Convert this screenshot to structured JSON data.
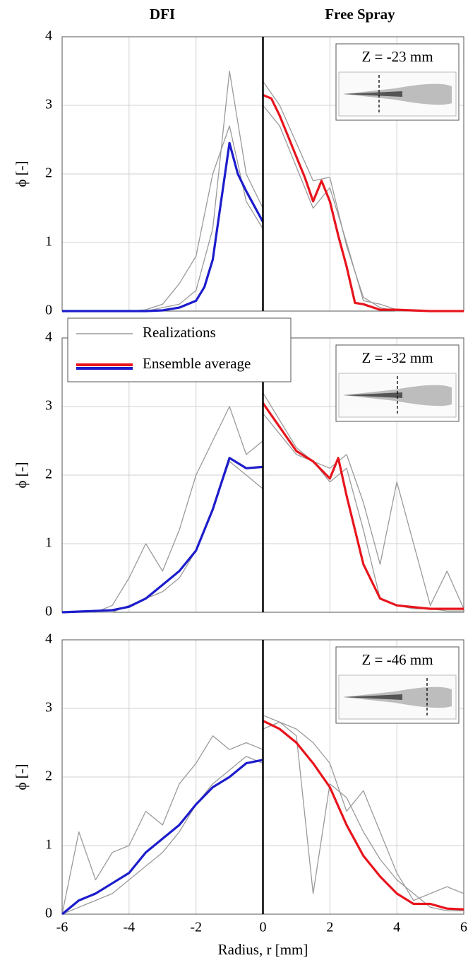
{
  "chart_data": [
    {
      "type": "line",
      "column_titles": [
        "DFI",
        "Free Spray"
      ],
      "ylabel": "ϕ [-]",
      "annotation": "Z = -23 mm",
      "xlim": [
        -6,
        6
      ],
      "ylim": [
        0,
        4
      ],
      "xticks": [
        -6,
        -4,
        -2,
        0,
        2,
        4,
        6
      ],
      "yticks": [
        0,
        1,
        2,
        3,
        4
      ],
      "grid": true,
      "series": [
        {
          "color": "#9a9a9a",
          "x": [
            -6,
            -5.5,
            -5,
            -4.5,
            -4,
            -3.5,
            -3,
            -2.5,
            -2,
            -1.5,
            -1,
            -0.5,
            0
          ],
          "values": [
            0,
            0,
            0,
            0,
            0,
            0,
            0.05,
            0.1,
            0.3,
            1.2,
            3.5,
            2.0,
            1.5
          ]
        },
        {
          "color": "#9a9a9a",
          "x": [
            -6,
            -5.5,
            -5,
            -4.5,
            -4,
            -3.5,
            -3,
            -2.5,
            -2,
            -1.5,
            -1,
            -0.5,
            0
          ],
          "values": [
            0,
            0,
            0,
            0,
            0,
            0.02,
            0.1,
            0.4,
            0.8,
            2.0,
            2.7,
            1.6,
            1.2
          ]
        },
        {
          "color": "#9a9a9a",
          "x": [
            0,
            0.5,
            1,
            1.5,
            2,
            2.5,
            3,
            3.5,
            4,
            4.5,
            5,
            5.5,
            6
          ],
          "values": [
            3.35,
            3.0,
            2.45,
            1.9,
            1.95,
            0.95,
            0.2,
            0.05,
            0,
            0,
            0,
            0,
            0
          ]
        },
        {
          "color": "#9a9a9a",
          "x": [
            0,
            0.5,
            1,
            1.5,
            2,
            2.5,
            3,
            3.5,
            4,
            4.5,
            5,
            5.5,
            6
          ],
          "values": [
            3.0,
            2.7,
            2.1,
            1.5,
            1.8,
            1.0,
            0.15,
            0.1,
            0.02,
            0,
            0,
            0,
            0
          ]
        },
        {
          "color": "#1c1ccc",
          "x": [
            -6,
            -5.5,
            -5,
            -4.5,
            -4,
            -3.5,
            -3,
            -2.5,
            -2,
            -1.75,
            -1.5,
            -1.25,
            -1,
            -0.75,
            -0.5,
            0
          ],
          "values": [
            0,
            0,
            0,
            0,
            0,
            0,
            0.01,
            0.05,
            0.15,
            0.35,
            0.75,
            1.6,
            2.45,
            2.0,
            1.75,
            1.3
          ]
        },
        {
          "color": "#e8141c",
          "x": [
            0,
            0.25,
            0.5,
            0.75,
            1,
            1.25,
            1.5,
            1.75,
            2,
            2.25,
            2.5,
            2.75,
            3,
            3.5,
            4,
            5,
            6
          ],
          "values": [
            3.15,
            3.1,
            2.85,
            2.55,
            2.25,
            1.95,
            1.6,
            1.9,
            1.6,
            1.1,
            0.65,
            0.12,
            0.1,
            0.02,
            0.02,
            0,
            0
          ]
        }
      ]
    },
    {
      "type": "line",
      "ylabel": "ϕ [-]",
      "annotation": "Z = -32 mm",
      "xlim": [
        -6,
        6
      ],
      "ylim": [
        0,
        4
      ],
      "xticks": [
        -6,
        -4,
        -2,
        0,
        2,
        4,
        6
      ],
      "yticks": [
        0,
        1,
        2,
        3,
        4
      ],
      "grid": true,
      "legend": {
        "position": "upper left",
        "entries": [
          {
            "label": "Realizations",
            "colors": [
              "#9a9a9a"
            ]
          },
          {
            "label": "Ensemble average",
            "colors": [
              "#e8141c",
              "#1c1ccc"
            ]
          }
        ]
      },
      "series": [
        {
          "color": "#9a9a9a",
          "x": [
            -6,
            -5.5,
            -5,
            -4.5,
            -4,
            -3.5,
            -3,
            -2.5,
            -2,
            -1.5,
            -1,
            -0.5,
            0
          ],
          "values": [
            0,
            0,
            0,
            0.1,
            0.5,
            1.0,
            0.6,
            1.2,
            2.0,
            2.5,
            3.0,
            2.3,
            2.5
          ]
        },
        {
          "color": "#9a9a9a",
          "x": [
            -6,
            -5.5,
            -5,
            -4.5,
            -4,
            -3.5,
            -3,
            -2.5,
            -2,
            -1.5,
            -1,
            -0.5,
            0
          ],
          "values": [
            0,
            0,
            0,
            0,
            0.1,
            0.2,
            0.3,
            0.5,
            0.9,
            1.5,
            2.2,
            2.0,
            1.8
          ]
        },
        {
          "color": "#9a9a9a",
          "x": [
            0,
            0.5,
            1,
            1.5,
            2,
            2.5,
            3,
            3.5,
            4,
            4.5,
            5,
            5.5,
            6
          ],
          "values": [
            3.2,
            2.8,
            2.4,
            2.2,
            2.1,
            2.3,
            1.6,
            0.7,
            1.9,
            1.0,
            0.1,
            0.6,
            0.05
          ]
        },
        {
          "color": "#9a9a9a",
          "x": [
            0,
            0.5,
            1,
            1.5,
            2,
            2.5,
            3,
            3.5,
            4,
            4.5,
            5,
            5.5,
            6
          ],
          "values": [
            2.9,
            2.6,
            2.3,
            2.2,
            1.9,
            2.1,
            1.2,
            0.2,
            0.1,
            0.05,
            0.05,
            0.02,
            0.02
          ]
        },
        {
          "color": "#1c1ccc",
          "x": [
            -6,
            -5,
            -4.5,
            -4,
            -3.5,
            -3,
            -2.5,
            -2,
            -1.5,
            -1,
            -0.5,
            0
          ],
          "values": [
            0,
            0.02,
            0.03,
            0.08,
            0.2,
            0.4,
            0.6,
            0.9,
            1.5,
            2.25,
            2.1,
            2.12
          ]
        },
        {
          "color": "#e8141c",
          "x": [
            0,
            0.5,
            1,
            1.5,
            2,
            2.25,
            2.5,
            3,
            3.5,
            4,
            5,
            6
          ],
          "values": [
            3.05,
            2.7,
            2.35,
            2.2,
            1.95,
            2.25,
            1.7,
            0.7,
            0.2,
            0.1,
            0.05,
            0.05
          ]
        }
      ]
    },
    {
      "type": "line",
      "ylabel": "ϕ [-]",
      "annotation": "Z = -46 mm",
      "xlabel": "Radius, r [mm]",
      "xlim": [
        -6,
        6
      ],
      "ylim": [
        0,
        4
      ],
      "xticks": [
        -6,
        -4,
        -2,
        0,
        2,
        4,
        6
      ],
      "yticks": [
        0,
        1,
        2,
        3,
        4
      ],
      "grid": true,
      "series": [
        {
          "color": "#9a9a9a",
          "x": [
            -6,
            -5.5,
            -5,
            -4.5,
            -4,
            -3.5,
            -3,
            -2.5,
            -2,
            -1.5,
            -1,
            -0.5,
            0
          ],
          "values": [
            0,
            1.2,
            0.5,
            0.9,
            1.0,
            1.5,
            1.3,
            1.9,
            2.2,
            2.6,
            2.4,
            2.5,
            2.4
          ]
        },
        {
          "color": "#9a9a9a",
          "x": [
            -6,
            -5.5,
            -5,
            -4.5,
            -4,
            -3.5,
            -3,
            -2.5,
            -2,
            -1.5,
            -1,
            -0.5,
            0
          ],
          "values": [
            0,
            0.1,
            0.2,
            0.3,
            0.5,
            0.7,
            0.9,
            1.2,
            1.6,
            1.9,
            2.1,
            2.3,
            2.2
          ]
        },
        {
          "color": "#9a9a9a",
          "x": [
            0,
            0.5,
            1,
            1.5,
            2,
            2.5,
            3,
            3.5,
            4,
            4.5,
            5,
            5.5,
            6
          ],
          "values": [
            2.9,
            2.8,
            2.7,
            2.5,
            2.2,
            1.5,
            1.8,
            1.2,
            0.6,
            0.2,
            0.3,
            0.4,
            0.3
          ]
        },
        {
          "color": "#9a9a9a",
          "x": [
            0,
            0.5,
            1,
            1.5,
            2,
            2.5,
            3,
            3.5,
            4,
            4.5,
            5,
            5.5,
            6
          ],
          "values": [
            2.7,
            2.8,
            2.6,
            0.3,
            1.9,
            1.7,
            1.2,
            0.8,
            0.5,
            0.3,
            0.1,
            0.05,
            0.05
          ]
        },
        {
          "color": "#1c1ccc",
          "x": [
            -6,
            -5.5,
            -5,
            -4.5,
            -4,
            -3.5,
            -3,
            -2.5,
            -2,
            -1.5,
            -1,
            -0.5,
            0
          ],
          "values": [
            0,
            0.2,
            0.3,
            0.45,
            0.6,
            0.9,
            1.1,
            1.3,
            1.6,
            1.85,
            2.0,
            2.2,
            2.25
          ]
        },
        {
          "color": "#e8141c",
          "x": [
            0,
            0.5,
            1,
            1.5,
            2,
            2.5,
            3,
            3.5,
            4,
            4.5,
            5,
            5.5,
            6
          ],
          "values": [
            2.82,
            2.7,
            2.5,
            2.2,
            1.85,
            1.3,
            0.85,
            0.55,
            0.3,
            0.15,
            0.15,
            0.08,
            0.07
          ]
        }
      ]
    }
  ]
}
